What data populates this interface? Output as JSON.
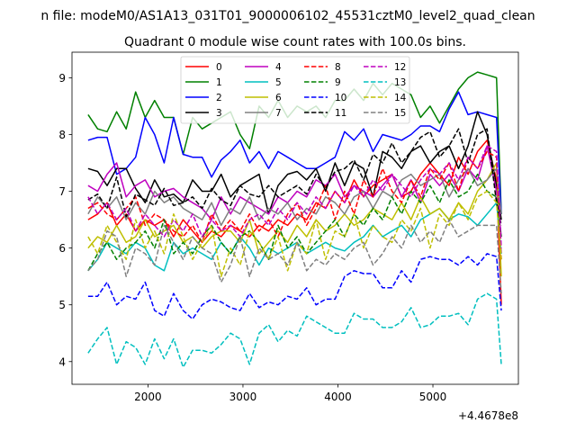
{
  "chart_data": {
    "type": "line",
    "suptitle": "n file: modeM0/AS1A13_031T01_9000006102_45531cztM0_level2_quad_clean",
    "title": "Quadrant 0 module wise count rates with 100.0s bins.",
    "xlabel": "",
    "ylabel": "",
    "x_offset_label": "+4.4678e8",
    "xlim": [
      1200,
      5900
    ],
    "ylim": [
      3.6,
      9.45
    ],
    "xticks": [
      {
        "value": 2000,
        "label": "2000"
      },
      {
        "value": 3000,
        "label": "3000"
      },
      {
        "value": 4000,
        "label": "4000"
      },
      {
        "value": 5000,
        "label": "5000"
      }
    ],
    "yticks": [
      {
        "value": 4,
        "label": "4"
      },
      {
        "value": 5,
        "label": "5"
      },
      {
        "value": 6,
        "label": "6"
      },
      {
        "value": 7,
        "label": "7"
      },
      {
        "value": 8,
        "label": "8"
      },
      {
        "value": 9,
        "label": "9"
      }
    ],
    "grid": false,
    "legend_position": "top-center",
    "legend_columns": 4,
    "x": [
      1370,
      1470,
      1570,
      1670,
      1770,
      1870,
      1970,
      2070,
      2170,
      2270,
      2370,
      2470,
      2570,
      2670,
      2770,
      2870,
      2970,
      3070,
      3170,
      3270,
      3370,
      3470,
      3570,
      3670,
      3770,
      3870,
      3970,
      4070,
      4170,
      4270,
      4370,
      4470,
      4570,
      4670,
      4770,
      4870,
      4970,
      5070,
      5170,
      5270,
      5370,
      5470,
      5570,
      5670,
      5720
    ],
    "series": [
      {
        "name": "0",
        "color": "#ff0000",
        "dash": "solid",
        "values": [
          6.5,
          6.6,
          6.8,
          6.4,
          6.6,
          6.3,
          6.5,
          6.4,
          6.5,
          6.2,
          6.5,
          6.3,
          6.1,
          6.3,
          6.2,
          6.4,
          6.3,
          6.2,
          6.4,
          6.3,
          6.5,
          6.4,
          6.6,
          6.5,
          6.8,
          6.7,
          7.0,
          6.8,
          7.2,
          6.9,
          7.1,
          7.2,
          7.3,
          6.9,
          7.0,
          7.3,
          7.5,
          7.3,
          7.1,
          7.6,
          7.3,
          7.7,
          7.9,
          7.2,
          5.0
        ]
      },
      {
        "name": "1",
        "color": "#008000",
        "dash": "solid",
        "values": [
          8.35,
          8.1,
          8.05,
          8.4,
          8.1,
          8.75,
          8.3,
          8.6,
          8.3,
          8.3,
          7.65,
          8.3,
          8.1,
          8.2,
          8.3,
          8.4,
          8.0,
          7.75,
          8.5,
          8.3,
          8.6,
          8.3,
          8.5,
          8.4,
          8.5,
          8.3,
          8.6,
          8.6,
          8.8,
          8.6,
          8.9,
          8.7,
          8.9,
          8.8,
          8.7,
          8.3,
          8.5,
          8.2,
          8.5,
          8.8,
          9.0,
          9.1,
          9.05,
          9.0,
          6.6
        ]
      },
      {
        "name": "2",
        "color": "#0000ff",
        "dash": "solid",
        "values": [
          7.9,
          7.95,
          7.95,
          7.3,
          7.4,
          7.6,
          8.3,
          8.0,
          7.5,
          8.3,
          7.65,
          7.6,
          7.6,
          7.25,
          7.55,
          7.7,
          7.9,
          7.5,
          7.7,
          7.4,
          7.7,
          7.6,
          7.5,
          7.4,
          7.4,
          7.5,
          7.6,
          8.05,
          7.9,
          8.1,
          7.7,
          8.0,
          7.95,
          7.9,
          8.0,
          8.15,
          8.15,
          8.05,
          8.45,
          8.75,
          8.35,
          8.4,
          8.35,
          8.3,
          6.6
        ]
      },
      {
        "name": "3",
        "color": "#000000",
        "dash": "solid",
        "values": [
          7.4,
          7.35,
          7.1,
          7.4,
          7.4,
          7.05,
          6.8,
          7.2,
          6.9,
          6.95,
          6.8,
          7.2,
          7.0,
          7.0,
          7.3,
          6.9,
          7.1,
          7.2,
          7.3,
          6.6,
          7.1,
          7.3,
          7.35,
          7.2,
          7.4,
          7.0,
          7.5,
          7.1,
          7.5,
          7.4,
          6.9,
          7.7,
          7.6,
          7.4,
          7.7,
          7.8,
          7.5,
          7.7,
          7.8,
          7.4,
          7.8,
          8.4,
          8.0,
          7.1,
          6.5
        ]
      },
      {
        "name": "4",
        "color": "#bf00bf",
        "dash": "solid",
        "values": [
          7.1,
          7.0,
          7.3,
          7.5,
          6.9,
          7.1,
          7.2,
          6.9,
          7.0,
          7.05,
          6.9,
          6.8,
          6.7,
          6.5,
          6.9,
          6.6,
          6.9,
          6.8,
          6.7,
          6.6,
          6.9,
          6.8,
          7.0,
          6.9,
          7.2,
          7.1,
          7.3,
          6.9,
          7.1,
          7.0,
          6.9,
          7.1,
          7.3,
          6.9,
          7.2,
          6.8,
          7.3,
          7.1,
          7.3,
          7.0,
          7.4,
          7.2,
          7.8,
          7.0,
          6.2
        ]
      },
      {
        "name": "5",
        "color": "#00bfbf",
        "dash": "solid",
        "values": [
          5.6,
          5.8,
          6.1,
          6.0,
          5.9,
          6.1,
          6.0,
          5.7,
          5.6,
          6.1,
          5.9,
          6.0,
          5.9,
          5.8,
          6.1,
          5.9,
          6.2,
          6.0,
          5.7,
          6.0,
          5.9,
          6.0,
          6.1,
          5.9,
          6.0,
          6.1,
          6.0,
          5.95,
          6.1,
          6.2,
          6.4,
          6.2,
          6.3,
          6.4,
          6.2,
          6.5,
          6.6,
          6.7,
          6.5,
          6.6,
          6.55,
          6.4,
          6.6,
          6.8,
          5.9
        ]
      },
      {
        "name": "6",
        "color": "#bfbf00",
        "dash": "solid",
        "values": [
          6.0,
          6.2,
          6.1,
          6.4,
          6.1,
          6.2,
          6.5,
          6.2,
          6.3,
          6.4,
          6.1,
          6.2,
          6.0,
          6.2,
          6.3,
          6.3,
          6.1,
          6.5,
          5.9,
          6.1,
          6.3,
          6.1,
          6.4,
          6.2,
          6.5,
          6.3,
          6.4,
          6.6,
          6.4,
          6.5,
          6.7,
          6.6,
          6.5,
          6.8,
          6.5,
          6.9,
          6.6,
          6.7,
          6.5,
          6.8,
          6.6,
          7.0,
          7.2,
          7.5,
          5.5
        ]
      },
      {
        "name": "7",
        "color": "#808080",
        "dash": "solid",
        "values": [
          6.6,
          6.9,
          6.7,
          6.9,
          6.5,
          6.8,
          6.6,
          7.0,
          6.8,
          6.9,
          6.7,
          6.6,
          6.5,
          6.8,
          6.4,
          6.7,
          6.6,
          6.9,
          6.5,
          6.7,
          6.6,
          6.8,
          6.5,
          6.7,
          6.6,
          6.9,
          6.8,
          6.6,
          6.9,
          7.0,
          6.7,
          7.0,
          6.9,
          7.2,
          7.3,
          7.1,
          7.2,
          7.3,
          6.9,
          7.2,
          7.4,
          7.1,
          7.2,
          7.4,
          6.6
        ]
      },
      {
        "name": "8",
        "color": "#ff0000",
        "dash": "dashed",
        "values": [
          6.7,
          6.8,
          6.6,
          6.5,
          6.7,
          6.9,
          6.4,
          6.6,
          6.5,
          6.3,
          6.2,
          6.4,
          6.1,
          6.6,
          6.3,
          6.5,
          6.3,
          6.6,
          6.3,
          6.5,
          6.2,
          6.6,
          6.8,
          6.4,
          6.7,
          7.1,
          6.5,
          7.0,
          6.6,
          7.2,
          6.9,
          7.4,
          7.0,
          6.8,
          7.2,
          6.9,
          7.4,
          7.2,
          7.5,
          7.0,
          7.6,
          7.4,
          7.7,
          7.6,
          5.8
        ]
      },
      {
        "name": "9",
        "color": "#008000",
        "dash": "dashed",
        "values": [
          5.6,
          5.9,
          6.1,
          5.8,
          6.0,
          6.1,
          6.3,
          6.0,
          6.5,
          5.9,
          6.1,
          5.9,
          6.2,
          6.4,
          6.1,
          5.9,
          6.2,
          6.3,
          6.1,
          5.8,
          6.4,
          6.0,
          6.2,
          5.9,
          6.1,
          6.3,
          6.5,
          6.2,
          6.6,
          6.4,
          6.7,
          6.5,
          6.9,
          6.6,
          7.0,
          6.8,
          7.1,
          6.8,
          7.2,
          6.9,
          7.0,
          7.3,
          7.0,
          6.9,
          6.2
        ]
      },
      {
        "name": "10",
        "color": "#0000ff",
        "dash": "dashed",
        "values": [
          5.15,
          5.15,
          5.4,
          5.0,
          5.15,
          5.1,
          5.4,
          4.9,
          4.8,
          5.2,
          4.9,
          4.75,
          5.0,
          5.1,
          5.05,
          4.95,
          4.9,
          5.2,
          4.95,
          5.05,
          5.0,
          5.15,
          5.1,
          5.3,
          5.0,
          5.1,
          5.1,
          5.5,
          5.6,
          5.55,
          5.55,
          5.3,
          5.3,
          5.6,
          5.4,
          5.8,
          5.85,
          5.8,
          5.8,
          5.7,
          5.85,
          5.7,
          5.9,
          5.85,
          4.9
        ]
      },
      {
        "name": "11",
        "color": "#000000",
        "dash": "dashed",
        "values": [
          6.85,
          6.95,
          6.7,
          7.25,
          6.55,
          6.95,
          6.85,
          6.75,
          7.05,
          6.75,
          6.8,
          6.9,
          6.7,
          7.05,
          6.85,
          6.75,
          7.1,
          6.95,
          6.9,
          7.1,
          6.9,
          7.0,
          7.1,
          6.95,
          7.3,
          7.05,
          7.35,
          7.4,
          7.55,
          7.2,
          7.65,
          7.5,
          7.85,
          7.5,
          7.7,
          7.95,
          8.05,
          7.6,
          7.8,
          8.1,
          7.5,
          8.0,
          8.1,
          6.8,
          6.4
        ]
      },
      {
        "name": "12",
        "color": "#bf00bf",
        "dash": "dashed",
        "values": [
          6.9,
          6.6,
          6.8,
          6.5,
          6.7,
          6.3,
          6.6,
          6.4,
          6.2,
          6.5,
          6.3,
          6.6,
          6.2,
          6.5,
          6.3,
          6.4,
          6.2,
          6.5,
          6.6,
          6.4,
          6.7,
          6.5,
          6.8,
          6.6,
          6.9,
          6.7,
          7.0,
          6.8,
          7.1,
          6.9,
          7.2,
          7.0,
          7.3,
          7.1,
          6.9,
          7.2,
          7.4,
          7.3,
          7.5,
          7.2,
          7.6,
          7.4,
          7.8,
          7.7,
          6.0
        ]
      },
      {
        "name": "13",
        "color": "#00bfbf",
        "dash": "dashed",
        "values": [
          4.15,
          4.4,
          4.6,
          3.95,
          4.35,
          4.25,
          3.95,
          4.4,
          4.05,
          4.4,
          3.9,
          4.2,
          4.2,
          4.15,
          4.3,
          4.5,
          4.4,
          3.95,
          4.5,
          4.65,
          4.35,
          4.55,
          4.45,
          4.8,
          4.7,
          4.6,
          4.5,
          4.5,
          4.85,
          4.75,
          4.75,
          4.6,
          4.6,
          4.7,
          4.95,
          4.6,
          4.65,
          4.8,
          4.8,
          4.85,
          4.65,
          5.1,
          5.2,
          5.1,
          3.95
        ]
      },
      {
        "name": "14",
        "color": "#bfbf00",
        "dash": "dashed",
        "values": [
          6.2,
          5.9,
          6.4,
          6.1,
          5.8,
          6.5,
          6.0,
          6.3,
          5.9,
          6.6,
          6.2,
          5.8,
          6.1,
          6.4,
          5.5,
          6.0,
          5.7,
          6.3,
          6.1,
          5.8,
          6.2,
          5.6,
          6.1,
          5.9,
          6.5,
          5.8,
          6.3,
          6.2,
          6.6,
          6.0,
          6.4,
          6.2,
          6.1,
          6.5,
          6.3,
          6.7,
          6.0,
          6.6,
          6.4,
          6.8,
          6.5,
          6.9,
          7.0,
          6.8,
          5.8
        ]
      },
      {
        "name": "15",
        "color": "#808080",
        "dash": "dashed",
        "values": [
          5.6,
          5.8,
          6.3,
          6.2,
          5.5,
          6.0,
          5.9,
          5.7,
          6.4,
          6.1,
          5.8,
          6.2,
          6.0,
          5.9,
          5.4,
          5.7,
          6.2,
          5.5,
          6.0,
          5.8,
          5.9,
          5.7,
          6.1,
          5.6,
          5.8,
          5.7,
          5.9,
          5.8,
          6.0,
          6.1,
          5.7,
          5.9,
          6.2,
          6.0,
          6.4,
          6.1,
          6.3,
          6.1,
          6.5,
          6.2,
          6.3,
          6.4,
          6.4,
          6.4,
          5.2
        ]
      }
    ]
  }
}
